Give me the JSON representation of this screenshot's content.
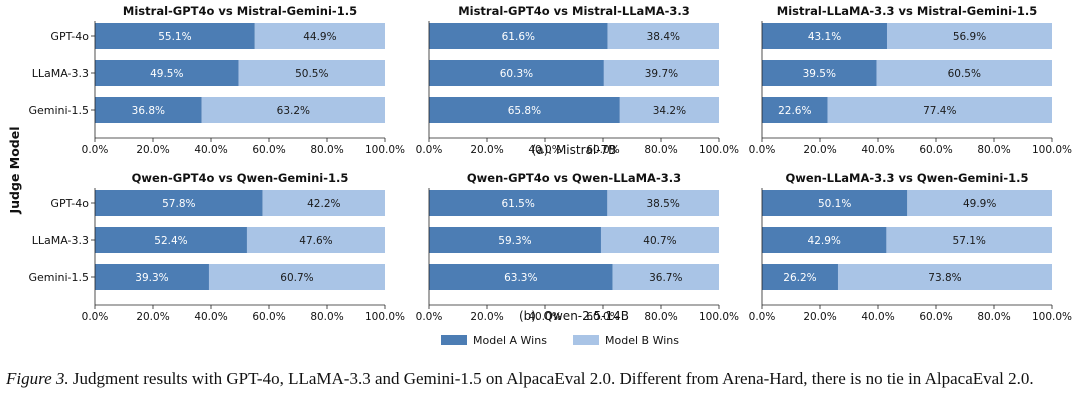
{
  "chart_data": {
    "type": "bar",
    "orientation": "horizontal",
    "stacked": true,
    "ylabel": "Judge Model",
    "x_ticks": [
      "0.0%",
      "20.0%",
      "40.0%",
      "60.0%",
      "80.0%",
      "100.0%"
    ],
    "xlim": [
      0,
      100
    ],
    "categories": [
      "GPT-4o",
      "LLaMA-3.3",
      "Gemini-1.5"
    ],
    "legend": {
      "position": "bottom",
      "entries": [
        {
          "name": "Model A Wins",
          "color": "#4c7db4"
        },
        {
          "name": "Model B Wins",
          "color": "#a9c4e6"
        }
      ]
    },
    "groups": [
      {
        "label": "(a). Mistral-7B",
        "panels": [
          {
            "title": "Mistral-GPT4o vs Mistral-Gemini-1.5",
            "a": [
              55.1,
              49.5,
              36.8
            ],
            "b": [
              44.9,
              50.5,
              63.2
            ]
          },
          {
            "title": "Mistral-GPT4o vs Mistral-LLaMA-3.3",
            "a": [
              61.6,
              60.3,
              65.8
            ],
            "b": [
              38.4,
              39.7,
              34.2
            ]
          },
          {
            "title": "Mistral-LLaMA-3.3 vs Mistral-Gemini-1.5",
            "a": [
              43.1,
              39.5,
              22.6
            ],
            "b": [
              56.9,
              60.5,
              77.4
            ]
          }
        ]
      },
      {
        "label": "(b). Qwen-2.5-14B",
        "panels": [
          {
            "title": "Qwen-GPT4o vs Qwen-Gemini-1.5",
            "a": [
              57.8,
              52.4,
              39.3
            ],
            "b": [
              42.2,
              47.6,
              60.7
            ]
          },
          {
            "title": "Qwen-GPT4o vs Qwen-LLaMA-3.3",
            "a": [
              61.5,
              59.3,
              63.3
            ],
            "b": [
              38.5,
              40.7,
              36.7
            ]
          },
          {
            "title": "Qwen-LLaMA-3.3 vs Qwen-Gemini-1.5",
            "a": [
              50.1,
              42.9,
              26.2
            ],
            "b": [
              49.9,
              57.1,
              73.8
            ]
          }
        ]
      }
    ]
  },
  "caption": {
    "lead": "Figure 3.",
    "text": " Judgment results with GPT-4o, LLaMA-3.3 and Gemini-1.5 on AlpacaEval 2.0. Different from Arena-Hard, there is no tie in AlpacaEval 2.0."
  }
}
